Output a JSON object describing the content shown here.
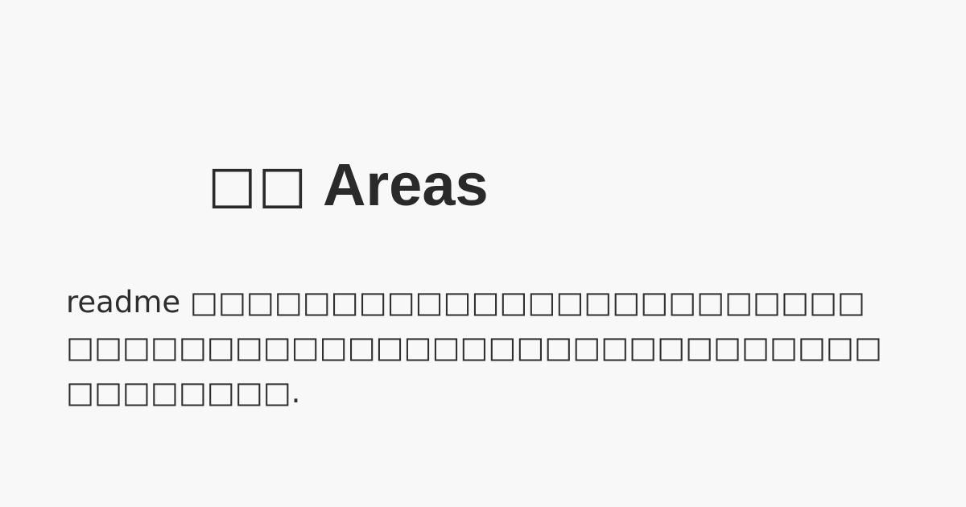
{
  "heading": {
    "glyphs": "□□",
    "title": "Areas"
  },
  "description": "readme □□□□□□□□□□□□□□□□□□□□□□□□□□□□□□□□□□□□□□□□□□□□□□□□□□□□□□□□□□□□□."
}
